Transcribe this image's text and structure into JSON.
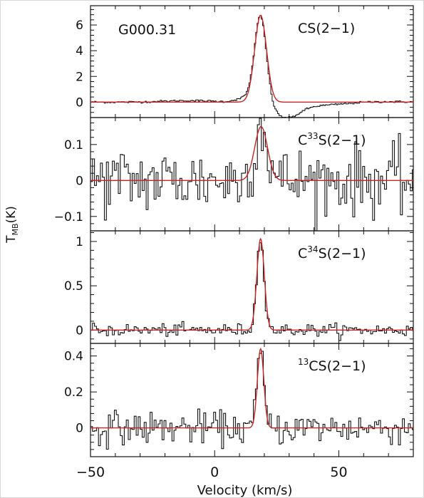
{
  "chart_data": {
    "type": "line",
    "object_label": "G000.31",
    "xlabel": "Velocity (km/s)",
    "ylabel": "T",
    "ylabel_sub": "MB",
    "ylabel_unit": "(K)",
    "xlim": [
      -50,
      80
    ],
    "xticks": [
      -50,
      0,
      50
    ],
    "xtick_labels": [
      "−50",
      "0",
      "50"
    ],
    "colors": {
      "observed": "#111111",
      "fit": "#cc2222"
    },
    "panels": [
      {
        "line_prefix": "",
        "line_sup": "",
        "line_main": "CS(2−1)",
        "ylim": [
          -1.2,
          7.5
        ],
        "yticks": [
          0,
          2,
          4,
          6
        ],
        "ytick_labels": [
          "0",
          "2",
          "4",
          "6"
        ],
        "fit": {
          "amp": 6.75,
          "center": 18.5,
          "sigma": 2.4
        },
        "baseline_features": [
          {
            "center": 29,
            "width": 5,
            "amp": -1.0
          },
          {
            "center": 40,
            "width": 16,
            "amp": -0.3
          },
          {
            "center": 13,
            "width": 4,
            "amp": 0.4
          },
          {
            "center": -10,
            "width": 10,
            "amp": 0.12
          },
          {
            "center": 60,
            "width": 12,
            "amp": 0.12
          }
        ],
        "noise": 0.04
      },
      {
        "line_prefix": "C",
        "line_sup": "33",
        "line_main": "S(2−1)",
        "ylim": [
          -0.14,
          0.175
        ],
        "yticks": [
          -0.1,
          0,
          0.1
        ],
        "ytick_labels": [
          "−0.1",
          "0",
          "0.1"
        ],
        "fit": {
          "amp": 0.15,
          "center": 18.7,
          "sigma": 2.6
        },
        "baseline_features": [],
        "noise": 0.048
      },
      {
        "line_prefix": "C",
        "line_sup": "34",
        "line_main": "S(2−1)",
        "ylim": [
          -0.15,
          1.12
        ],
        "yticks": [
          0,
          0.5,
          1
        ],
        "ytick_labels": [
          "0",
          "0.5",
          "1"
        ],
        "fit": {
          "amp": 1.03,
          "center": 18.5,
          "sigma": 1.5
        },
        "baseline_features": [],
        "noise": 0.035
      },
      {
        "line_prefix": "",
        "line_sup": "13",
        "line_main": "CS(2−1)",
        "ylim": [
          -0.16,
          0.47
        ],
        "yticks": [
          0,
          0.2,
          0.4
        ],
        "ytick_labels": [
          "0",
          "0.2",
          "0.4"
        ],
        "fit": {
          "amp": 0.44,
          "center": 18.5,
          "sigma": 1.3
        },
        "baseline_features": [],
        "noise": 0.045
      }
    ]
  }
}
